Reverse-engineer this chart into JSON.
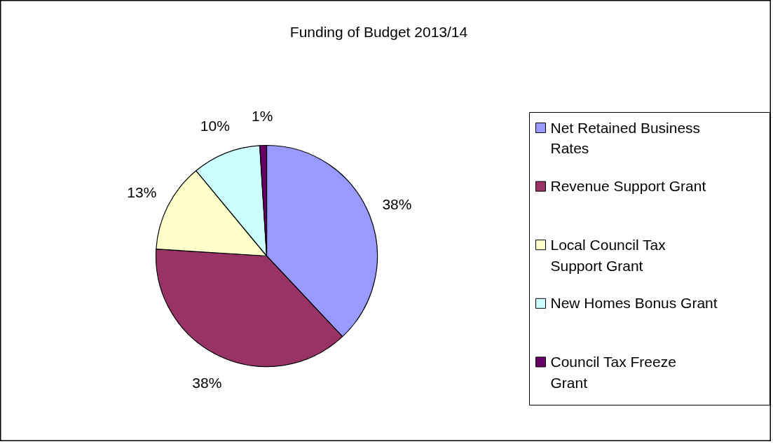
{
  "chart_data": {
    "type": "pie",
    "title": "Funding of Budget 2013/14",
    "categories": [
      "Net Retained Business Rates",
      "Revenue Support Grant",
      "Local Council Tax Support Grant",
      "New Homes Bonus Grant",
      "Council Tax Freeze Grant"
    ],
    "values": [
      38,
      38,
      13,
      10,
      1
    ],
    "colors": [
      "#9999ff",
      "#993366",
      "#ffffcc",
      "#ccffff",
      "#660066"
    ],
    "value_labels": [
      "38%",
      "38%",
      "13%",
      "10%",
      "1%"
    ],
    "legend": "right"
  }
}
